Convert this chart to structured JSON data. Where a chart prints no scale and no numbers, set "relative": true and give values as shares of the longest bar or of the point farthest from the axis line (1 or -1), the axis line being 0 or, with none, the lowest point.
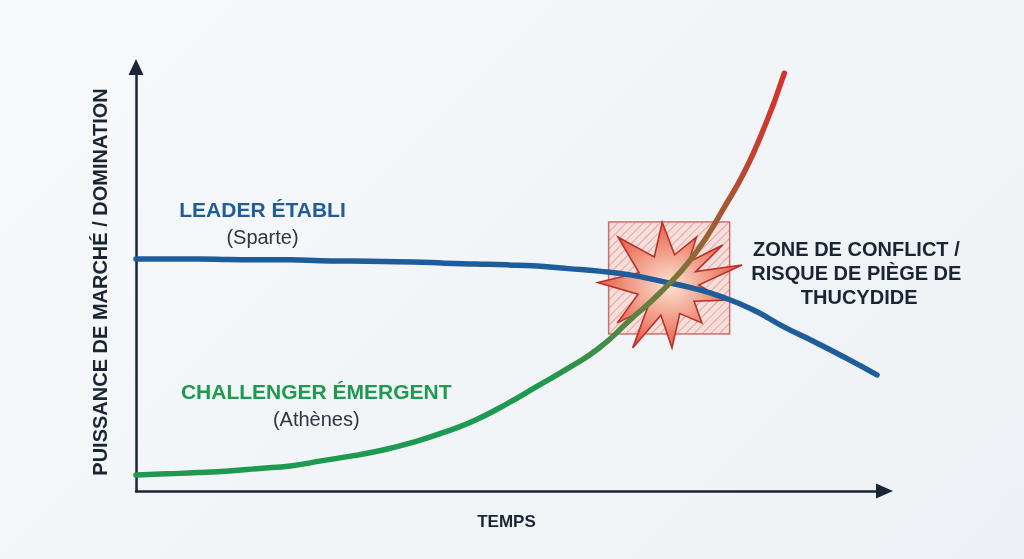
{
  "chart_data": {
    "type": "line",
    "xlabel": "TEMPS",
    "ylabel": "PUISSANCE DE MARCHÉ / DOMINATION",
    "relative": true,
    "marker": "none",
    "line_style": "solid",
    "categories": [
      null,
      null,
      null,
      null,
      null,
      null,
      null,
      null,
      null,
      null,
      null,
      null,
      null,
      null,
      null,
      null,
      null,
      null,
      null,
      null,
      null,
      null,
      null,
      null,
      null
    ],
    "series": [
      {
        "name": "LEADER ÉTABLI\n(Sparte)",
        "color": "#1f5c9c",
        "values": [
          0.555,
          0.555,
          0.555,
          0.554,
          0.553,
          0.553,
          0.551,
          0.55,
          0.549,
          0.548,
          0.545,
          0.543,
          0.541,
          0.538,
          0.532,
          0.526,
          0.517,
          0.502,
          0.486,
          0.464,
          0.433,
          0.392,
          0.356,
          0.318,
          0.278
        ]
      },
      {
        "name": "CHALLENGER ÉMERGENT\n(Athènes)",
        "colors": [
          "#1e9a50",
          "#1e9a50",
          "#1e9a50",
          "#1e9a50",
          "#1e9a50",
          "#1e9a50",
          "#1e9a50",
          "#1e9a50",
          "#1e9a50",
          "#1e9a50",
          "#1e9a50",
          "#1e9a50",
          "#1e9a50",
          "#1e9a50",
          "#2c944b",
          "#3f8d47",
          "#578542",
          "#6f7b3d",
          "#896c38",
          "#a65834",
          "#c4402f",
          "#d8302b",
          null,
          null,
          null
        ],
        "values": [
          0.038,
          0.041,
          0.044,
          0.048,
          0.054,
          0.06,
          0.072,
          0.084,
          0.098,
          0.117,
          0.141,
          0.17,
          0.208,
          0.251,
          0.294,
          0.342,
          0.409,
          0.476,
          0.557,
          0.672,
          0.809,
          1,
          null,
          null,
          null
        ]
      }
    ],
    "annotations": [
      "ZONE DE CONFLICT / RISQUE DE PIÈGE DE THUCYDIDE"
    ]
  }
}
